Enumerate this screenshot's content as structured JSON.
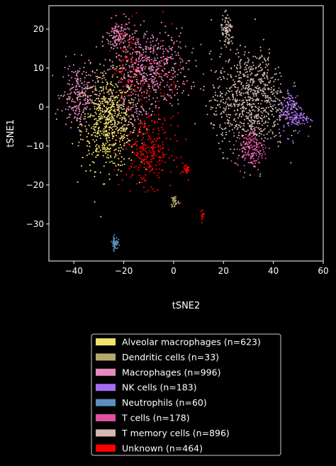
{
  "chart_data": {
    "type": "scatter",
    "title": "",
    "xlabel": "tSNE2",
    "ylabel": "tSNE1",
    "xlim": [
      -50,
      60
    ],
    "ylim": [
      -39.5,
      26
    ],
    "xticks": [
      -40,
      -20,
      0,
      20,
      40,
      60
    ],
    "yticks": [
      -30,
      -20,
      -10,
      0,
      10,
      20
    ],
    "grid": false,
    "legend_position": "below-center",
    "background": "#000000",
    "series": [
      {
        "name": "Alveolar macrophages (n=623)",
        "count": 623,
        "color": "#f0e36a",
        "clusters": [
          {
            "x": -26,
            "y": -4,
            "sx": 5.5,
            "sy": 6.0,
            "w": 1
          }
        ]
      },
      {
        "name": "Dendritic cells (n=33)",
        "count": 33,
        "color": "#b4aa6c",
        "clusters": [
          {
            "x": 0.5,
            "y": -24.2,
            "sx": 0.8,
            "sy": 0.9,
            "w": 1
          }
        ]
      },
      {
        "name": "Macrophages (n=996)",
        "count": 996,
        "color": "#e88ac0",
        "clusters": [
          {
            "x": -10,
            "y": 10,
            "sx": 8,
            "sy": 5,
            "w": 0.55
          },
          {
            "x": -22,
            "y": 18,
            "sx": 2.5,
            "sy": 2.0,
            "w": 0.12
          },
          {
            "x": -38,
            "y": 3,
            "sx": 3.5,
            "sy": 4.0,
            "w": 0.23
          },
          {
            "x": -18,
            "y": 0,
            "sx": 4,
            "sy": 5,
            "w": 0.1
          }
        ]
      },
      {
        "name": "NK cells (n=183)",
        "count": 183,
        "color": "#a46cf0",
        "clusters": [
          {
            "x": 47,
            "y": -1,
            "sx": 2.5,
            "sy": 3.0,
            "w": 0.8
          },
          {
            "x": 52,
            "y": -3,
            "sx": 2,
            "sy": 0.8,
            "w": 0.2
          }
        ]
      },
      {
        "name": "Neutrophils (n=60)",
        "count": 60,
        "color": "#5b8fc0",
        "clusters": [
          {
            "x": -23.5,
            "y": -34.8,
            "sx": 0.6,
            "sy": 0.8,
            "w": 1
          }
        ]
      },
      {
        "name": "T cells (n=178)",
        "count": 178,
        "color": "#e04fa0",
        "clusters": [
          {
            "x": 31,
            "y": -10.5,
            "sx": 2.8,
            "sy": 2.5,
            "w": 1
          }
        ]
      },
      {
        "name": "T memory cells (n=896)",
        "count": 896,
        "color": "#d2b8b0",
        "clusters": [
          {
            "x": 30,
            "y": 1,
            "sx": 7.5,
            "sy": 6,
            "w": 0.82
          },
          {
            "x": 21.5,
            "y": 19,
            "sx": 1.4,
            "sy": 2.2,
            "w": 0.1
          },
          {
            "x": 33,
            "y": 9,
            "sx": 4,
            "sy": 3,
            "w": 0.08
          }
        ]
      },
      {
        "name": "Unknown (n=464)",
        "count": 464,
        "color": "#ff0000",
        "clusters": [
          {
            "x": -10,
            "y": -11,
            "sx": 5,
            "sy": 4.5,
            "w": 0.6
          },
          {
            "x": -18,
            "y": 10,
            "sx": 3,
            "sy": 6,
            "w": 0.2
          },
          {
            "x": 5,
            "y": -16,
            "sx": 0.8,
            "sy": 0.9,
            "w": 0.07
          },
          {
            "x": 11.5,
            "y": -28,
            "sx": 0.4,
            "sy": 0.6,
            "w": 0.03
          },
          {
            "x": -5,
            "y": 8,
            "sx": 4,
            "sy": 6,
            "w": 0.1
          }
        ]
      }
    ]
  }
}
